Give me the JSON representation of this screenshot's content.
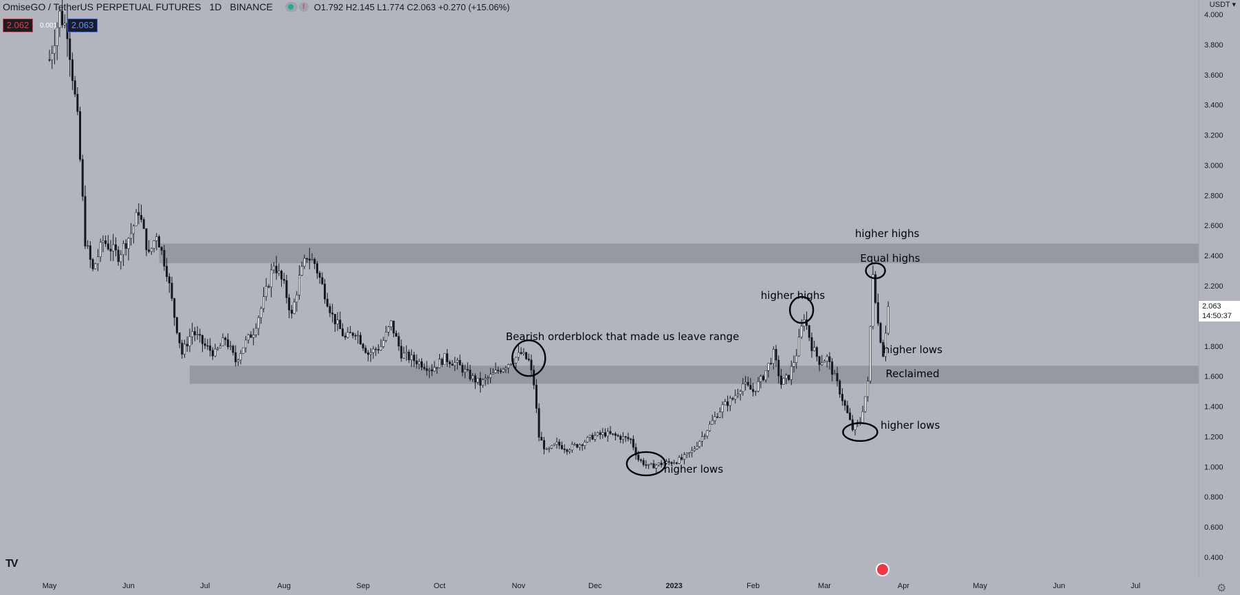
{
  "header": {
    "symbol": "OmiseGO / TetherUS PERPETUAL FUTURES",
    "interval": "1D",
    "exchange": "BINANCE",
    "ohlc": "O1.792 H2.145 L1.774 C2.063 +0.270 (+15.06%)",
    "status_flag": "!",
    "sell_price": "2.062",
    "spread": "0.001",
    "buy_price": "2.063",
    "currency": "USDT ▾"
  },
  "price_tag": {
    "price": "2.063",
    "countdown": "14:50:37"
  },
  "logo": "TV",
  "colors": {
    "background": "#b2b5be",
    "candles": "#131722",
    "zone": "#8e9098",
    "annotation": "#000000"
  },
  "icons": {
    "logo": "tradingview-logo",
    "flag": "us-flag-icon",
    "settings": "gear-icon"
  },
  "chart_data": {
    "type": "candlestick",
    "y_axis": {
      "min": 0.3,
      "max": 4.05,
      "ticks": [
        "4.000",
        "3.800",
        "3.600",
        "3.400",
        "3.200",
        "3.000",
        "2.800",
        "2.600",
        "2.400",
        "2.200",
        "2.000",
        "1.800",
        "1.600",
        "1.400",
        "1.200",
        "1.000",
        "0.800",
        "0.600",
        "0.400"
      ],
      "tick_values": [
        4.0,
        3.8,
        3.6,
        3.4,
        3.2,
        3.0,
        2.8,
        2.6,
        2.4,
        2.2,
        2.0,
        1.8,
        1.6,
        1.4,
        1.2,
        1.0,
        0.8,
        0.6,
        0.4
      ]
    },
    "x_axis": {
      "start": "2022-04-25",
      "end": "2023-07-31",
      "labels": [
        {
          "date": "2022-05-01",
          "text": "May"
        },
        {
          "date": "2022-06-01",
          "text": "Jun"
        },
        {
          "date": "2022-07-01",
          "text": "Jul"
        },
        {
          "date": "2022-08-01",
          "text": "Aug"
        },
        {
          "date": "2022-09-01",
          "text": "Sep"
        },
        {
          "date": "2022-10-01",
          "text": "Oct"
        },
        {
          "date": "2022-11-01",
          "text": "Nov"
        },
        {
          "date": "2022-12-01",
          "text": "Dec"
        },
        {
          "date": "2023-01-01",
          "text": "2023"
        },
        {
          "date": "2023-02-01",
          "text": "Feb"
        },
        {
          "date": "2023-03-01",
          "text": "Mar"
        },
        {
          "date": "2023-04-01",
          "text": "Apr"
        },
        {
          "date": "2023-05-01",
          "text": "May"
        },
        {
          "date": "2023-06-01",
          "text": "Jun"
        },
        {
          "date": "2023-07-01",
          "text": "Jul"
        }
      ]
    },
    "price_path": [
      [
        "2022-05-01",
        3.7
      ],
      [
        "2022-05-05",
        4.0
      ],
      [
        "2022-05-08",
        3.9
      ],
      [
        "2022-05-10",
        3.6
      ],
      [
        "2022-05-12",
        3.3
      ],
      [
        "2022-05-15",
        2.5
      ],
      [
        "2022-05-18",
        2.3
      ],
      [
        "2022-05-22",
        2.5
      ],
      [
        "2022-05-28",
        2.4
      ],
      [
        "2022-06-02",
        2.55
      ],
      [
        "2022-06-05",
        2.7
      ],
      [
        "2022-06-09",
        2.4
      ],
      [
        "2022-06-12",
        2.55
      ],
      [
        "2022-06-16",
        2.3
      ],
      [
        "2022-06-19",
        2.0
      ],
      [
        "2022-06-22",
        1.75
      ],
      [
        "2022-06-26",
        1.9
      ],
      [
        "2022-07-01",
        1.8
      ],
      [
        "2022-07-05",
        1.75
      ],
      [
        "2022-07-09",
        1.85
      ],
      [
        "2022-07-13",
        1.7
      ],
      [
        "2022-07-16",
        1.8
      ],
      [
        "2022-07-20",
        1.9
      ],
      [
        "2022-07-24",
        2.1
      ],
      [
        "2022-07-28",
        2.35
      ],
      [
        "2022-08-01",
        2.2
      ],
      [
        "2022-08-04",
        2.0
      ],
      [
        "2022-08-07",
        2.25
      ],
      [
        "2022-08-10",
        2.4
      ],
      [
        "2022-08-13",
        2.35
      ],
      [
        "2022-08-16",
        2.2
      ],
      [
        "2022-08-20",
        2.0
      ],
      [
        "2022-08-25",
        1.85
      ],
      [
        "2022-08-29",
        1.9
      ],
      [
        "2022-09-03",
        1.75
      ],
      [
        "2022-09-08",
        1.8
      ],
      [
        "2022-09-12",
        1.95
      ],
      [
        "2022-09-16",
        1.75
      ],
      [
        "2022-09-22",
        1.7
      ],
      [
        "2022-09-28",
        1.65
      ],
      [
        "2022-10-03",
        1.72
      ],
      [
        "2022-10-08",
        1.68
      ],
      [
        "2022-10-13",
        1.6
      ],
      [
        "2022-10-17",
        1.55
      ],
      [
        "2022-10-21",
        1.6
      ],
      [
        "2022-10-25",
        1.65
      ],
      [
        "2022-10-29",
        1.7
      ],
      [
        "2022-11-02",
        1.75
      ],
      [
        "2022-11-05",
        1.7
      ],
      [
        "2022-11-07",
        1.55
      ],
      [
        "2022-11-09",
        1.2
      ],
      [
        "2022-11-12",
        1.1
      ],
      [
        "2022-11-16",
        1.15
      ],
      [
        "2022-11-20",
        1.12
      ],
      [
        "2022-11-25",
        1.15
      ],
      [
        "2022-11-30",
        1.2
      ],
      [
        "2022-12-05",
        1.22
      ],
      [
        "2022-12-10",
        1.2
      ],
      [
        "2022-12-15",
        1.18
      ],
      [
        "2022-12-18",
        1.05
      ],
      [
        "2022-12-22",
        1.0
      ],
      [
        "2022-12-27",
        1.02
      ],
      [
        "2022-12-31",
        1.03
      ],
      [
        "2023-01-04",
        1.05
      ],
      [
        "2023-01-08",
        1.1
      ],
      [
        "2023-01-12",
        1.2
      ],
      [
        "2023-01-16",
        1.3
      ],
      [
        "2023-01-20",
        1.4
      ],
      [
        "2023-01-24",
        1.45
      ],
      [
        "2023-01-28",
        1.55
      ],
      [
        "2023-02-01",
        1.5
      ],
      [
        "2023-02-05",
        1.6
      ],
      [
        "2023-02-09",
        1.75
      ],
      [
        "2023-02-12",
        1.55
      ],
      [
        "2023-02-15",
        1.6
      ],
      [
        "2023-02-18",
        1.75
      ],
      [
        "2023-02-21",
        2.0
      ],
      [
        "2023-02-24",
        1.8
      ],
      [
        "2023-02-27",
        1.7
      ],
      [
        "2023-03-02",
        1.72
      ],
      [
        "2023-03-06",
        1.55
      ],
      [
        "2023-03-09",
        1.4
      ],
      [
        "2023-03-12",
        1.25
      ],
      [
        "2023-03-15",
        1.3
      ],
      [
        "2023-03-18",
        1.55
      ],
      [
        "2023-03-20",
        2.3
      ],
      [
        "2023-03-22",
        1.95
      ],
      [
        "2023-03-24",
        1.75
      ],
      [
        "2023-03-26",
        2.063
      ]
    ],
    "zones": [
      {
        "from": "2022-06-13",
        "to": "2023-07-31",
        "low": 2.35,
        "high": 2.48
      },
      {
        "from": "2022-06-25",
        "to": "2023-07-31",
        "low": 1.55,
        "high": 1.67
      }
    ],
    "annotations": [
      {
        "text": "Bearish orderblock that made us leave range",
        "date": "2022-10-27",
        "price": 1.86
      },
      {
        "text": "higher lows",
        "date": "2022-12-28",
        "price": 0.98
      },
      {
        "text": "higher highs",
        "date": "2023-02-04",
        "price": 2.13
      },
      {
        "text": "higher highs",
        "date": "2023-03-13",
        "price": 2.54
      },
      {
        "text": "Equal highs",
        "date": "2023-03-15",
        "price": 2.38
      },
      {
        "text": "higher lows",
        "date": "2023-03-24",
        "price": 1.77
      },
      {
        "text": "Reclaimed",
        "date": "2023-03-25",
        "price": 1.61
      },
      {
        "text": "higher lows",
        "date": "2023-03-23",
        "price": 1.27
      }
    ],
    "circles": [
      {
        "date": "2022-11-05",
        "price": 1.72
      },
      {
        "date": "2022-12-21",
        "price": 1.02
      },
      {
        "date": "2023-02-20",
        "price": 2.04
      },
      {
        "date": "2023-03-15",
        "price": 1.23
      },
      {
        "date": "2023-03-21",
        "price": 2.3
      }
    ]
  }
}
